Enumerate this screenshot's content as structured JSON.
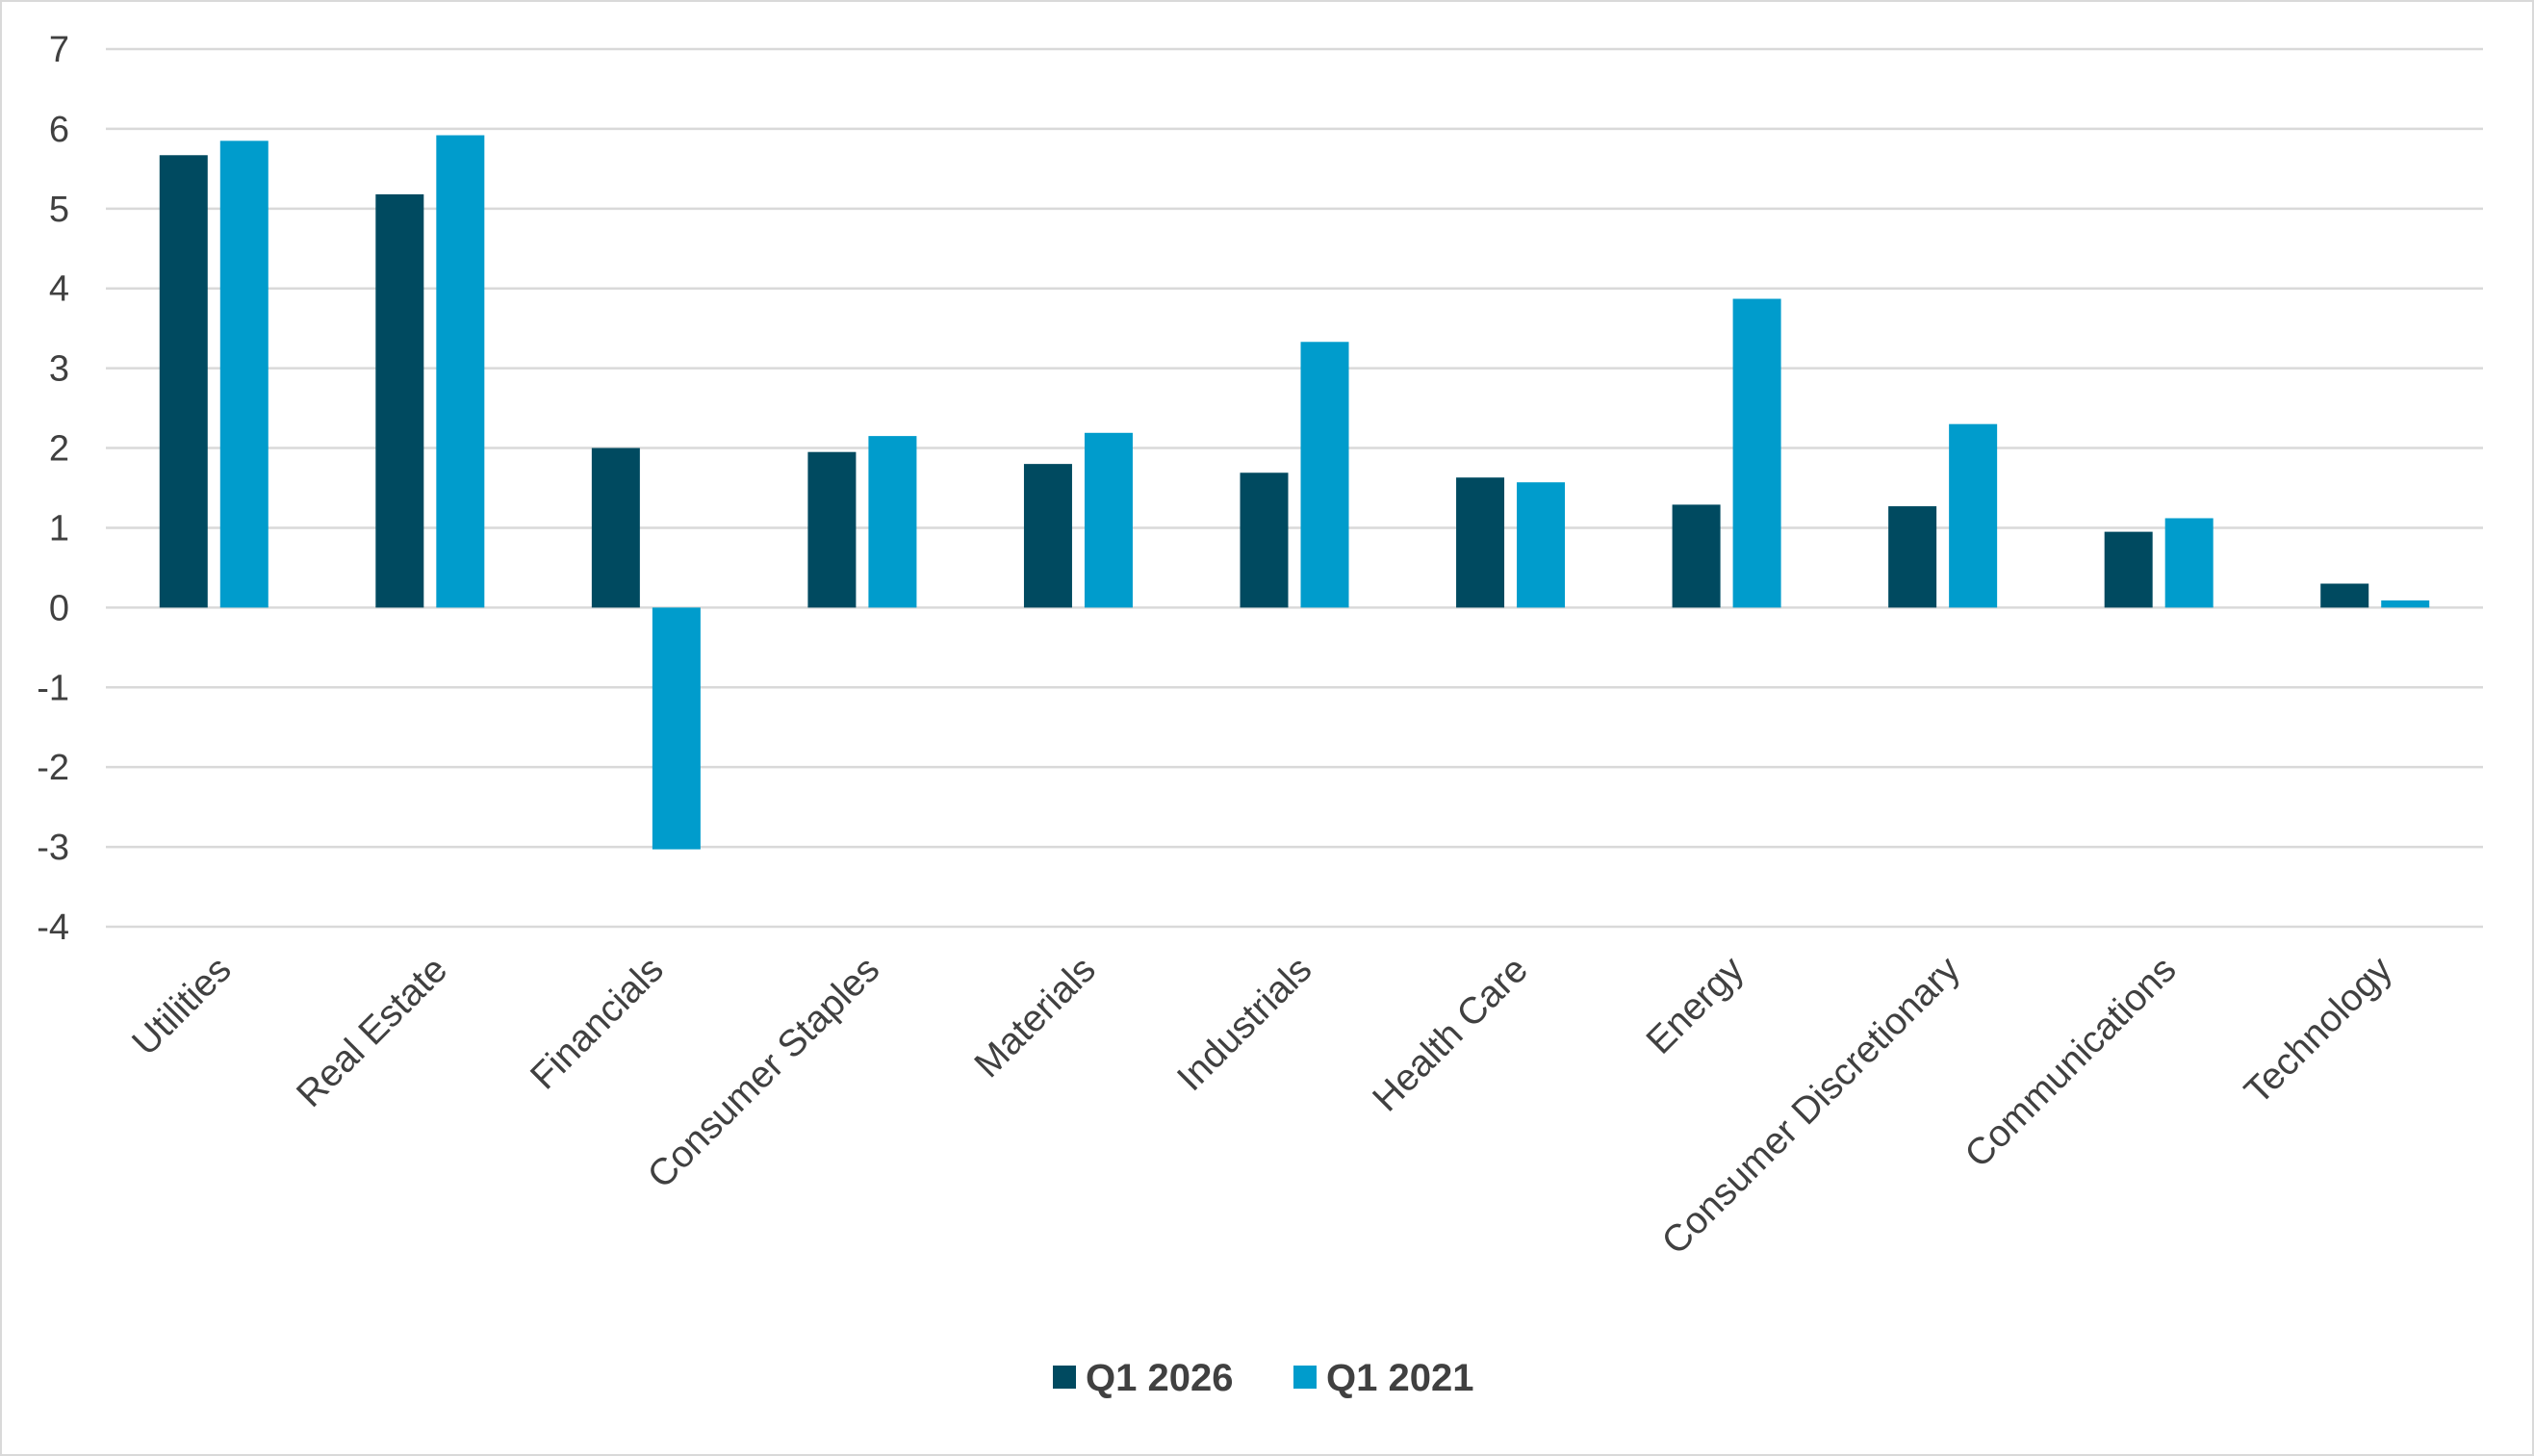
{
  "chart_data": {
    "type": "bar",
    "title": "",
    "xlabel": "",
    "ylabel": "",
    "ylim": [
      -4,
      7
    ],
    "yticks": [
      7,
      6,
      5,
      4,
      3,
      2,
      1,
      0,
      -1,
      -2,
      -3,
      -4
    ],
    "grid": true,
    "legend_position": "bottom",
    "categories": [
      "Utilities",
      "Real Estate",
      "Financials",
      "Consumer Staples",
      "Materials",
      "Industrials",
      "Health Care",
      "Energy",
      "Consumer Discretionary",
      "Communications",
      "Technology"
    ],
    "series": [
      {
        "name": "Q1 2026",
        "color": "#004a60",
        "values": [
          5.67,
          5.18,
          2.0,
          1.95,
          1.8,
          1.69,
          1.63,
          1.29,
          1.27,
          0.95,
          0.3
        ]
      },
      {
        "name": "Q1 2021",
        "color": "#009ccc",
        "values": [
          5.85,
          5.92,
          -3.03,
          2.15,
          2.19,
          3.33,
          1.57,
          3.87,
          2.3,
          1.12,
          0.09
        ]
      }
    ]
  }
}
